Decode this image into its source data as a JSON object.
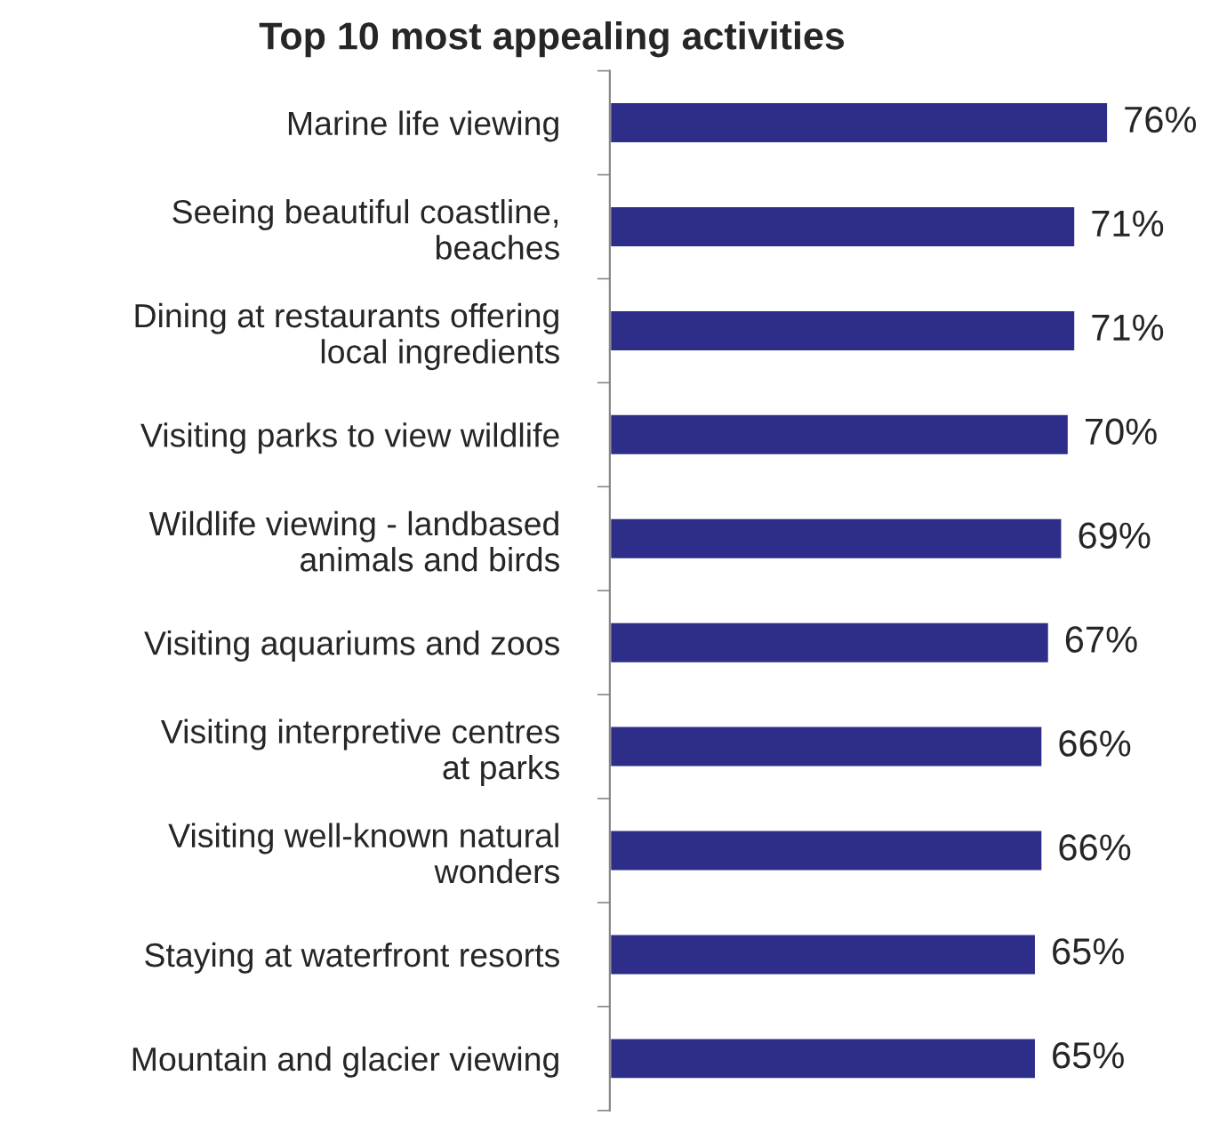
{
  "chart_data": {
    "type": "bar",
    "orientation": "horizontal",
    "title": "Top 10 most appealing activities",
    "categories": [
      "Marine life viewing",
      "Seeing beautiful coastline,\nbeaches",
      "Dining at restaurants offering\nlocal ingredients",
      "Visiting parks to view wildlife",
      "Wildlife viewing - landbased\nanimals and birds",
      "Visiting aquariums and zoos",
      "Visiting interpretive centres\nat parks",
      "Visiting well-known natural\nwonders",
      "Staying at waterfront resorts",
      "Mountain and glacier viewing"
    ],
    "values": [
      76,
      71,
      71,
      70,
      69,
      67,
      66,
      66,
      65,
      65
    ],
    "value_labels": [
      "76%",
      "71%",
      "71%",
      "70%",
      "69%",
      "67%",
      "66%",
      "66%",
      "65%",
      "65%"
    ],
    "color": "#2e2e8a",
    "tick_labels": "y",
    "grid": false,
    "legend": false
  }
}
